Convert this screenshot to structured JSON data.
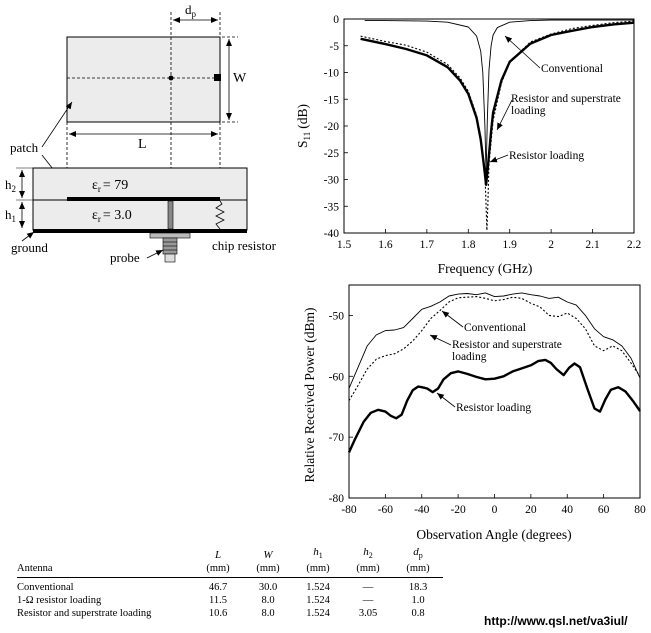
{
  "diagram": {
    "labels": {
      "dp": "d",
      "dp_sub": "p",
      "w": "W",
      "l": "L",
      "patch": "patch",
      "h2": "h",
      "h2_sub": "2",
      "h1": "h",
      "h1_sub": "1",
      "eps_top": "= 79",
      "eps_bottom": "= 3.0",
      "eps_symbol": "ε",
      "eps_sub": "r",
      "ground": "ground",
      "probe": "probe",
      "chip_resistor": "chip resistor"
    }
  },
  "chart_data": [
    {
      "type": "line",
      "ylabel": "S",
      "ylabel_sub": "11",
      "ylabel_unit": "(dB)",
      "xlabel": "Frequency (GHz)",
      "xlim": [
        1.5,
        2.2
      ],
      "ylim": [
        -40,
        0
      ],
      "xticks": [
        "1.5",
        "1.6",
        "1.7",
        "1.8",
        "1.9",
        "2",
        "2.1",
        "2.2"
      ],
      "yticks": [
        "0",
        "-5",
        "-10",
        "-15",
        "-20",
        "-25",
        "-30",
        "-35",
        "-40"
      ],
      "grid": false,
      "series": [
        {
          "name": "Conventional",
          "style": "thin",
          "x": [
            1.55,
            1.6,
            1.7,
            1.75,
            1.8,
            1.82,
            1.83,
            1.835,
            1.84,
            1.843,
            1.846,
            1.85,
            1.855,
            1.86,
            1.87,
            1.9,
            1.95,
            2.0,
            2.1,
            2.2
          ],
          "y": [
            -0.3,
            -0.3,
            -0.4,
            -0.6,
            -1.5,
            -3.2,
            -6.0,
            -10.0,
            -20.0,
            -29.0,
            -19.0,
            -9.5,
            -5.0,
            -3.0,
            -1.6,
            -0.6,
            -0.3,
            -0.2,
            -0.2,
            -0.2
          ]
        },
        {
          "name": "Resistor and superstrate loading",
          "style": "dotted",
          "x": [
            1.54,
            1.6,
            1.65,
            1.7,
            1.75,
            1.78,
            1.8,
            1.82,
            1.83,
            1.84,
            1.843,
            1.845,
            1.847,
            1.85,
            1.86,
            1.88,
            1.9,
            1.95,
            2.0,
            2.05,
            2.1,
            2.15,
            2.2
          ],
          "y": [
            -3.2,
            -4.2,
            -4.9,
            -6.2,
            -8.5,
            -11.0,
            -13.5,
            -18.0,
            -22.0,
            -28.5,
            -35.0,
            -39.5,
            -35.0,
            -27.0,
            -19.0,
            -12.0,
            -8.0,
            -4.3,
            -2.8,
            -1.8,
            -1.2,
            -0.7,
            -0.4
          ]
        },
        {
          "name": "Resistor loading",
          "style": "thick",
          "x": [
            1.54,
            1.6,
            1.65,
            1.7,
            1.75,
            1.78,
            1.8,
            1.82,
            1.83,
            1.838,
            1.843,
            1.848,
            1.855,
            1.86,
            1.88,
            1.9,
            1.95,
            2.0,
            2.05,
            2.1,
            2.15,
            2.2
          ],
          "y": [
            -3.7,
            -4.7,
            -5.6,
            -6.8,
            -9.0,
            -11.5,
            -14.0,
            -18.5,
            -22.5,
            -27.5,
            -31.0,
            -27.0,
            -21.0,
            -17.5,
            -11.5,
            -8.0,
            -4.6,
            -3.0,
            -2.2,
            -1.5,
            -1.0,
            -0.7
          ]
        }
      ],
      "annotations": [
        "Conventional",
        "Resistor and superstrate",
        "loading",
        "Resistor loading"
      ]
    },
    {
      "type": "line",
      "ylabel": "Relative Received Power (dBm)",
      "xlabel": "Observation Angle (degrees)",
      "xlim": [
        -80,
        80
      ],
      "ylim": [
        -80,
        -45
      ],
      "xticks": [
        "-80",
        "-60",
        "-40",
        "-20",
        "0",
        "20",
        "40",
        "60",
        "80"
      ],
      "yticks": [
        "-50",
        "-60",
        "-70",
        "-80"
      ],
      "grid": false,
      "series": [
        {
          "name": "Conventional",
          "style": "thin",
          "x": [
            -80,
            -75,
            -70,
            -65,
            -60,
            -55,
            -50,
            -45,
            -40,
            -35,
            -30,
            -25,
            -20,
            -15,
            -10,
            -5,
            0,
            5,
            10,
            15,
            20,
            25,
            30,
            35,
            40,
            45,
            50,
            55,
            60,
            65,
            70,
            75,
            80
          ],
          "y": [
            -62,
            -58.5,
            -55,
            -53.2,
            -52.5,
            -52.4,
            -52,
            -50.5,
            -49,
            -48.5,
            -47.8,
            -46.8,
            -46.5,
            -46.4,
            -46.6,
            -46.3,
            -46.9,
            -46.8,
            -46.5,
            -46.3,
            -46.6,
            -46.8,
            -47.2,
            -47.0,
            -47.8,
            -48.3,
            -50.0,
            -52.2,
            -53.5,
            -54.0,
            -55.0,
            -57.0,
            -60.3
          ]
        },
        {
          "name": "Resistor and superstrate loading",
          "style": "dotted",
          "x": [
            -80,
            -75,
            -70,
            -65,
            -60,
            -55,
            -50,
            -45,
            -40,
            -35,
            -30,
            -25,
            -20,
            -15,
            -10,
            -5,
            0,
            5,
            10,
            15,
            20,
            25,
            30,
            35,
            40,
            45,
            50,
            55,
            60,
            65,
            70,
            75,
            80
          ],
          "y": [
            -64,
            -61.5,
            -58.8,
            -57.2,
            -56.6,
            -56.3,
            -55.5,
            -54.2,
            -52.5,
            -50.5,
            -49.2,
            -47.8,
            -47.1,
            -47.0,
            -46.9,
            -47.2,
            -47.6,
            -47.4,
            -47.0,
            -47.2,
            -48.0,
            -48.6,
            -50.0,
            -50.2,
            -49.6,
            -50.5,
            -52.2,
            -55.0,
            -55.8,
            -55.0,
            -55.8,
            -57.8,
            -60.0
          ]
        },
        {
          "name": "Resistor loading",
          "style": "thick",
          "x": [
            -80,
            -77,
            -72,
            -68,
            -64,
            -60,
            -57,
            -54,
            -51,
            -48,
            -45,
            -42,
            -40,
            -37,
            -34,
            -31,
            -28,
            -24,
            -20,
            -15,
            -10,
            -5,
            0,
            5,
            10,
            15,
            20,
            24,
            28,
            31,
            34,
            38,
            41,
            44,
            47,
            51,
            55,
            58,
            61,
            64,
            68,
            72,
            76,
            80
          ],
          "y": [
            -72.5,
            -70.5,
            -67.5,
            -66.0,
            -65.5,
            -65.8,
            -66.5,
            -66.9,
            -66.3,
            -64.0,
            -62.3,
            -61.7,
            -61.8,
            -62.0,
            -62.6,
            -62.0,
            -60.5,
            -59.5,
            -59.2,
            -59.6,
            -60.1,
            -60.5,
            -60.4,
            -60.0,
            -59.2,
            -58.7,
            -58.2,
            -57.5,
            -57.3,
            -57.8,
            -58.8,
            -59.8,
            -58.6,
            -57.9,
            -58.5,
            -62.0,
            -65.3,
            -65.8,
            -63.8,
            -62.2,
            -61.8,
            -62.5,
            -64.0,
            -65.7
          ]
        }
      ],
      "annotations": [
        "Conventional",
        "Resistor and superstrate",
        "loading",
        "Resistor loading"
      ]
    }
  ],
  "table": {
    "header_symbols": [
      "",
      "L",
      "W",
      "h",
      "h",
      "d"
    ],
    "header_subs": [
      "",
      "",
      "",
      "1",
      "2",
      "p"
    ],
    "header_first": "Antenna",
    "units": [
      "(mm)",
      "(mm)",
      "(mm)",
      "(mm)",
      "(mm)"
    ],
    "rows": [
      [
        "Conventional",
        "46.7",
        "30.0",
        "1.524",
        "—",
        "18.3"
      ],
      [
        "1-Ω resistor loading",
        "11.5",
        "8.0",
        "1.524",
        "—",
        "1.0"
      ],
      [
        "Resistor and superstrate loading",
        "10.6",
        "8.0",
        "1.524",
        "3.05",
        "0.8"
      ]
    ]
  },
  "source_url": "http://www.qsl.net/va3iul/"
}
